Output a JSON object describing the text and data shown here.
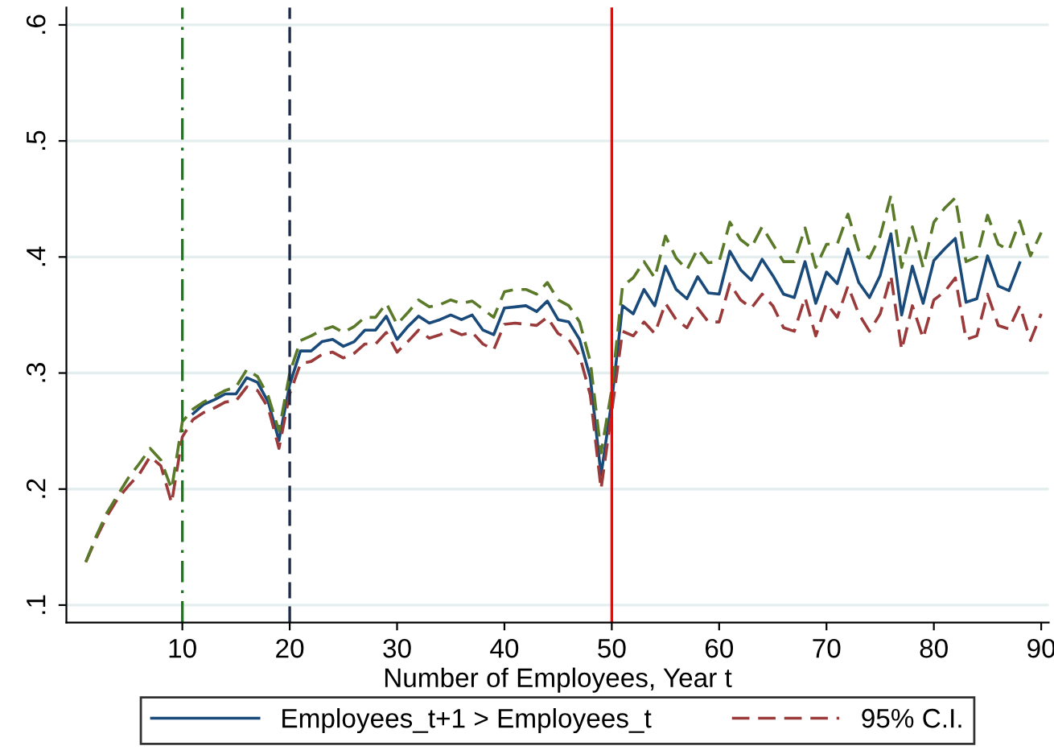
{
  "chart_data": {
    "type": "line",
    "xlabel": "Number of Employees, Year t",
    "xlim": [
      -0.8,
      90.7
    ],
    "xticks": [
      10,
      20,
      30,
      40,
      50,
      60,
      70,
      80,
      90
    ],
    "ylim": [
      0.085,
      0.615
    ],
    "yticks": [
      {
        "value": 0.1,
        "label": ".1"
      },
      {
        "value": 0.2,
        "label": ".2"
      },
      {
        "value": 0.3,
        "label": ".3"
      },
      {
        "value": 0.4,
        "label": ".4"
      },
      {
        "value": 0.5,
        "label": ".5"
      },
      {
        "value": 0.6,
        "label": ".6"
      }
    ],
    "grid": "y",
    "legend": "bottom",
    "marker": "none",
    "ref_lines": [
      {
        "axis": "x",
        "value": 10,
        "color": "#1a7a1a",
        "line_style": "dashdot"
      },
      {
        "axis": "x",
        "value": 20,
        "color": "#1c2a4a",
        "line_style": "dashed"
      },
      {
        "axis": "x",
        "value": 50,
        "color": "#ff0000",
        "line_style": "solid"
      }
    ],
    "series": [
      {
        "name": "Employees_t+1 > Employees_t",
        "color": "#1a4a7a",
        "line_style": "solid",
        "x": [
          11,
          12,
          13,
          14,
          15,
          16,
          17,
          18,
          19,
          20,
          21,
          22,
          23,
          24,
          25,
          26,
          27,
          28,
          29,
          30,
          31,
          32,
          33,
          34,
          35,
          36,
          37,
          38,
          39,
          40,
          41,
          42,
          43,
          44,
          45,
          46,
          47,
          48,
          49,
          50,
          51,
          52,
          53,
          54,
          55,
          56,
          57,
          58,
          59,
          60,
          61,
          62,
          63,
          64,
          65,
          66,
          67,
          68,
          69,
          70,
          71,
          72,
          73,
          74,
          75,
          76,
          77,
          78,
          79,
          80,
          81,
          82,
          83,
          84,
          85,
          86,
          87,
          88
        ],
        "values": [
          0.265,
          0.273,
          0.277,
          0.282,
          0.282,
          0.296,
          0.292,
          0.275,
          0.242,
          0.29,
          0.319,
          0.319,
          0.327,
          0.329,
          0.323,
          0.327,
          0.337,
          0.337,
          0.349,
          0.329,
          0.34,
          0.349,
          0.343,
          0.346,
          0.35,
          0.346,
          0.35,
          0.337,
          0.333,
          0.356,
          0.357,
          0.358,
          0.353,
          0.362,
          0.346,
          0.344,
          0.329,
          0.296,
          0.212,
          0.276,
          0.358,
          0.351,
          0.372,
          0.358,
          0.392,
          0.372,
          0.364,
          0.383,
          0.369,
          0.368,
          0.405,
          0.389,
          0.38,
          0.398,
          0.384,
          0.368,
          0.365,
          0.396,
          0.36,
          0.387,
          0.377,
          0.407,
          0.378,
          0.365,
          0.384,
          0.42,
          0.35,
          0.392,
          0.36,
          0.397,
          0.407,
          0.416,
          0.361,
          0.364,
          0.401,
          0.375,
          0.371,
          0.395
        ]
      },
      {
        "name": "95% C.I.",
        "color": "#9b3a3a",
        "line_style": "dashed",
        "x": [
          1,
          2,
          3,
          4,
          5,
          6,
          7,
          8,
          9,
          10,
          11,
          12,
          13,
          14,
          15,
          16,
          17,
          18,
          19,
          20,
          21,
          22,
          23,
          24,
          25,
          26,
          27,
          28,
          29,
          30,
          31,
          32,
          33,
          34,
          35,
          36,
          37,
          38,
          39,
          40,
          41,
          42,
          43,
          44,
          45,
          46,
          47,
          48,
          49,
          50,
          51,
          52,
          53,
          54,
          55,
          56,
          57,
          58,
          59,
          60,
          61,
          62,
          63,
          64,
          65,
          66,
          67,
          68,
          69,
          70,
          71,
          72,
          73,
          74,
          75,
          76,
          77,
          78,
          79,
          80,
          81,
          82,
          83,
          84,
          85,
          86,
          87,
          88,
          89,
          90
        ],
        "values": [
          0.137,
          0.158,
          0.177,
          0.192,
          0.203,
          0.213,
          0.228,
          0.22,
          0.188,
          0.245,
          0.26,
          0.266,
          0.27,
          0.275,
          0.276,
          0.288,
          0.285,
          0.27,
          0.235,
          0.282,
          0.308,
          0.31,
          0.316,
          0.318,
          0.313,
          0.317,
          0.325,
          0.325,
          0.335,
          0.318,
          0.327,
          0.337,
          0.33,
          0.333,
          0.337,
          0.333,
          0.335,
          0.325,
          0.32,
          0.342,
          0.343,
          0.342,
          0.341,
          0.348,
          0.334,
          0.329,
          0.315,
          0.281,
          0.2,
          0.267,
          0.336,
          0.332,
          0.344,
          0.334,
          0.36,
          0.346,
          0.339,
          0.356,
          0.344,
          0.344,
          0.377,
          0.363,
          0.356,
          0.368,
          0.358,
          0.339,
          0.336,
          0.365,
          0.332,
          0.36,
          0.348,
          0.375,
          0.351,
          0.336,
          0.351,
          0.384,
          0.32,
          0.358,
          0.33,
          0.363,
          0.37,
          0.382,
          0.329,
          0.332,
          0.368,
          0.341,
          0.338,
          0.358,
          0.328,
          0.351
        ]
      },
      {
        "color": "#5a7a2a",
        "line_style": "dashed",
        "x": [
          1,
          2,
          3,
          4,
          5,
          6,
          7,
          8,
          9,
          10,
          11,
          12,
          13,
          14,
          15,
          16,
          17,
          18,
          19,
          20,
          21,
          22,
          23,
          24,
          25,
          26,
          27,
          28,
          29,
          30,
          31,
          32,
          33,
          34,
          35,
          36,
          37,
          38,
          39,
          40,
          41,
          42,
          43,
          44,
          45,
          46,
          47,
          48,
          49,
          50,
          51,
          52,
          53,
          54,
          55,
          56,
          57,
          58,
          59,
          60,
          61,
          62,
          63,
          64,
          65,
          66,
          67,
          68,
          69,
          70,
          71,
          72,
          73,
          74,
          75,
          76,
          77,
          78,
          79,
          80,
          81,
          82,
          83,
          84,
          85,
          86,
          87,
          88,
          89,
          90
        ],
        "values": [
          0.137,
          0.16,
          0.18,
          0.195,
          0.21,
          0.222,
          0.235,
          0.225,
          0.2,
          0.258,
          0.269,
          0.275,
          0.28,
          0.285,
          0.288,
          0.303,
          0.297,
          0.28,
          0.25,
          0.3,
          0.328,
          0.332,
          0.337,
          0.34,
          0.335,
          0.34,
          0.348,
          0.348,
          0.36,
          0.342,
          0.352,
          0.363,
          0.357,
          0.359,
          0.363,
          0.36,
          0.362,
          0.355,
          0.348,
          0.37,
          0.372,
          0.372,
          0.368,
          0.378,
          0.363,
          0.358,
          0.344,
          0.31,
          0.231,
          0.286,
          0.375,
          0.382,
          0.396,
          0.382,
          0.418,
          0.399,
          0.389,
          0.407,
          0.395,
          0.396,
          0.43,
          0.415,
          0.408,
          0.426,
          0.411,
          0.396,
          0.396,
          0.425,
          0.391,
          0.411,
          0.411,
          0.437,
          0.406,
          0.399,
          0.418,
          0.453,
          0.391,
          0.426,
          0.391,
          0.43,
          0.442,
          0.451,
          0.396,
          0.4,
          0.436,
          0.411,
          0.406,
          0.431,
          0.401,
          0.421
        ]
      }
    ]
  }
}
